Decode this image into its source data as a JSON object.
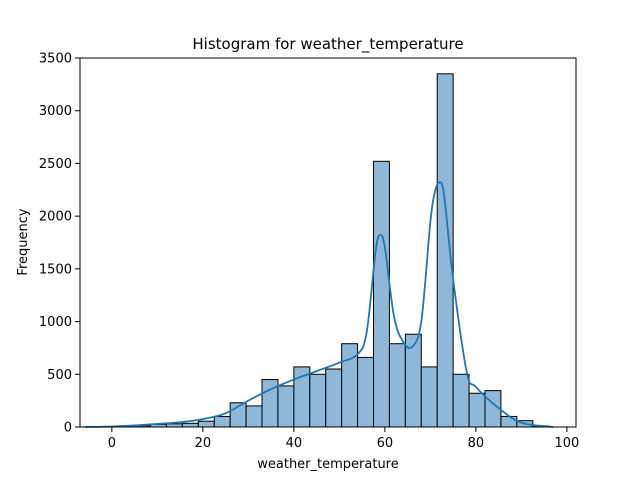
{
  "chart_data": {
    "type": "bar",
    "title": "Histogram for weather_temperature",
    "xlabel": "weather_temperature",
    "ylabel": "Frequency",
    "xlim": [
      -7,
      102
    ],
    "ylim": [
      0,
      3500
    ],
    "x_ticks": [
      0,
      20,
      40,
      60,
      80,
      100
    ],
    "y_ticks": [
      0,
      500,
      1000,
      1500,
      2000,
      2500,
      3000,
      3500
    ],
    "bar_fill": "#8fb8d8",
    "bar_edge": "#000000",
    "kde_color": "#1f77b4",
    "bins": [
      {
        "x0": -5.5,
        "x1": -2.0,
        "value": 3
      },
      {
        "x0": -2.0,
        "x1": 1.5,
        "value": 5
      },
      {
        "x0": 1.5,
        "x1": 5.0,
        "value": 8
      },
      {
        "x0": 5.0,
        "x1": 8.5,
        "value": 12
      },
      {
        "x0": 8.5,
        "x1": 12.0,
        "value": 25
      },
      {
        "x0": 12.0,
        "x1": 15.5,
        "value": 30
      },
      {
        "x0": 15.5,
        "x1": 19.0,
        "value": 35
      },
      {
        "x0": 19.0,
        "x1": 22.5,
        "value": 55
      },
      {
        "x0": 22.5,
        "x1": 26.0,
        "value": 100
      },
      {
        "x0": 26.0,
        "x1": 29.5,
        "value": 230
      },
      {
        "x0": 29.5,
        "x1": 33.0,
        "value": 200
      },
      {
        "x0": 33.0,
        "x1": 36.5,
        "value": 450
      },
      {
        "x0": 36.5,
        "x1": 40.0,
        "value": 390
      },
      {
        "x0": 40.0,
        "x1": 43.5,
        "value": 570
      },
      {
        "x0": 43.5,
        "x1": 47.0,
        "value": 500
      },
      {
        "x0": 47.0,
        "x1": 50.5,
        "value": 550
      },
      {
        "x0": 50.5,
        "x1": 54.0,
        "value": 790
      },
      {
        "x0": 54.0,
        "x1": 57.5,
        "value": 660
      },
      {
        "x0": 57.5,
        "x1": 61.0,
        "value": 2520
      },
      {
        "x0": 61.0,
        "x1": 64.5,
        "value": 790
      },
      {
        "x0": 64.5,
        "x1": 68.0,
        "value": 880
      },
      {
        "x0": 68.0,
        "x1": 71.5,
        "value": 570
      },
      {
        "x0": 71.5,
        "x1": 75.0,
        "value": 3350
      },
      {
        "x0": 75.0,
        "x1": 78.5,
        "value": 500
      },
      {
        "x0": 78.5,
        "x1": 82.0,
        "value": 320
      },
      {
        "x0": 82.0,
        "x1": 85.5,
        "value": 345
      },
      {
        "x0": 85.5,
        "x1": 89.0,
        "value": 100
      },
      {
        "x0": 89.0,
        "x1": 92.5,
        "value": 60
      },
      {
        "x0": 92.5,
        "x1": 96.0,
        "value": 10
      }
    ],
    "kde": {
      "x": [
        -6,
        0,
        5,
        10,
        15,
        20,
        25,
        30,
        35,
        40,
        45,
        50,
        54,
        56,
        58,
        59,
        60,
        62,
        64,
        66,
        68,
        70,
        71,
        72,
        73,
        75,
        78,
        80,
        85,
        90,
        97
      ],
      "y": [
        0,
        5,
        15,
        30,
        45,
        75,
        130,
        250,
        360,
        450,
        530,
        610,
        690,
        900,
        1680,
        1820,
        1700,
        1050,
        810,
        760,
        1000,
        1950,
        2230,
        2320,
        2200,
        1400,
        520,
        380,
        180,
        40,
        0
      ]
    }
  }
}
